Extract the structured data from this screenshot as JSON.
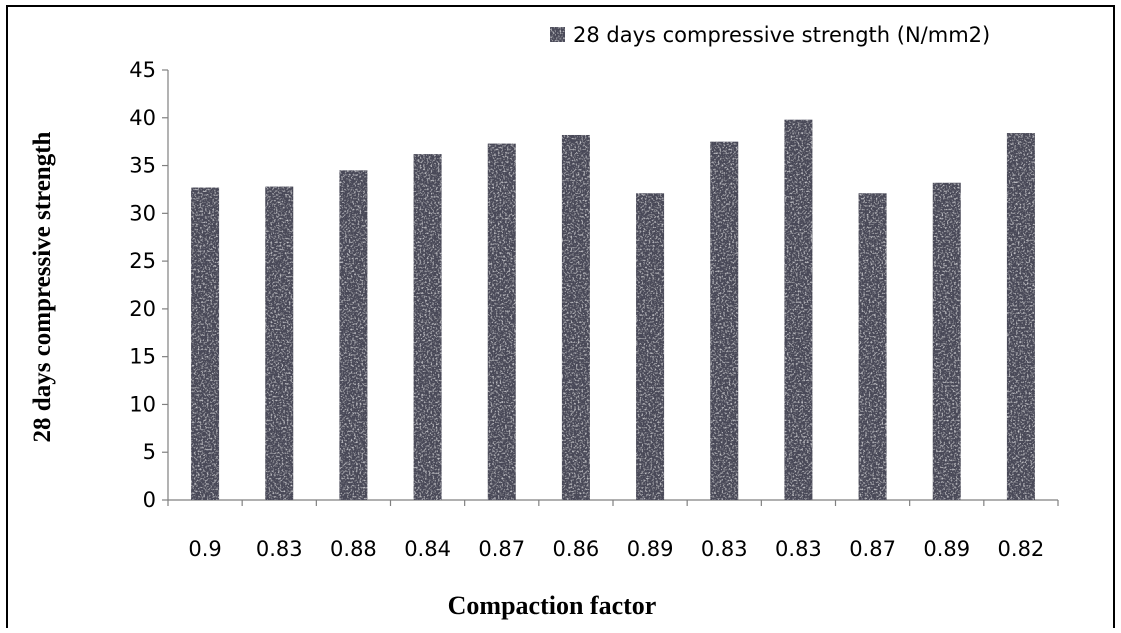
{
  "chart_data": {
    "type": "bar",
    "title": "",
    "xlabel": "Compaction factor",
    "ylabel": "28 days compressive strength",
    "ylim": [
      0,
      45
    ],
    "yticks": [
      0,
      5,
      10,
      15,
      20,
      25,
      30,
      35,
      40,
      45
    ],
    "grid": false,
    "legend_position": "top-right",
    "categories": [
      "0.9",
      "0.83",
      "0.88",
      "0.84",
      "0.87",
      "0.86",
      "0.89",
      "0.83",
      "0.83",
      "0.87",
      "0.89",
      "0.82"
    ],
    "series": [
      {
        "name": "28 days compressive strength (N/mm2)",
        "color": "#4a4a58",
        "values": [
          32.7,
          32.8,
          34.5,
          36.2,
          37.3,
          38.2,
          32.1,
          37.5,
          39.8,
          32.1,
          33.2,
          38.4
        ]
      }
    ]
  }
}
